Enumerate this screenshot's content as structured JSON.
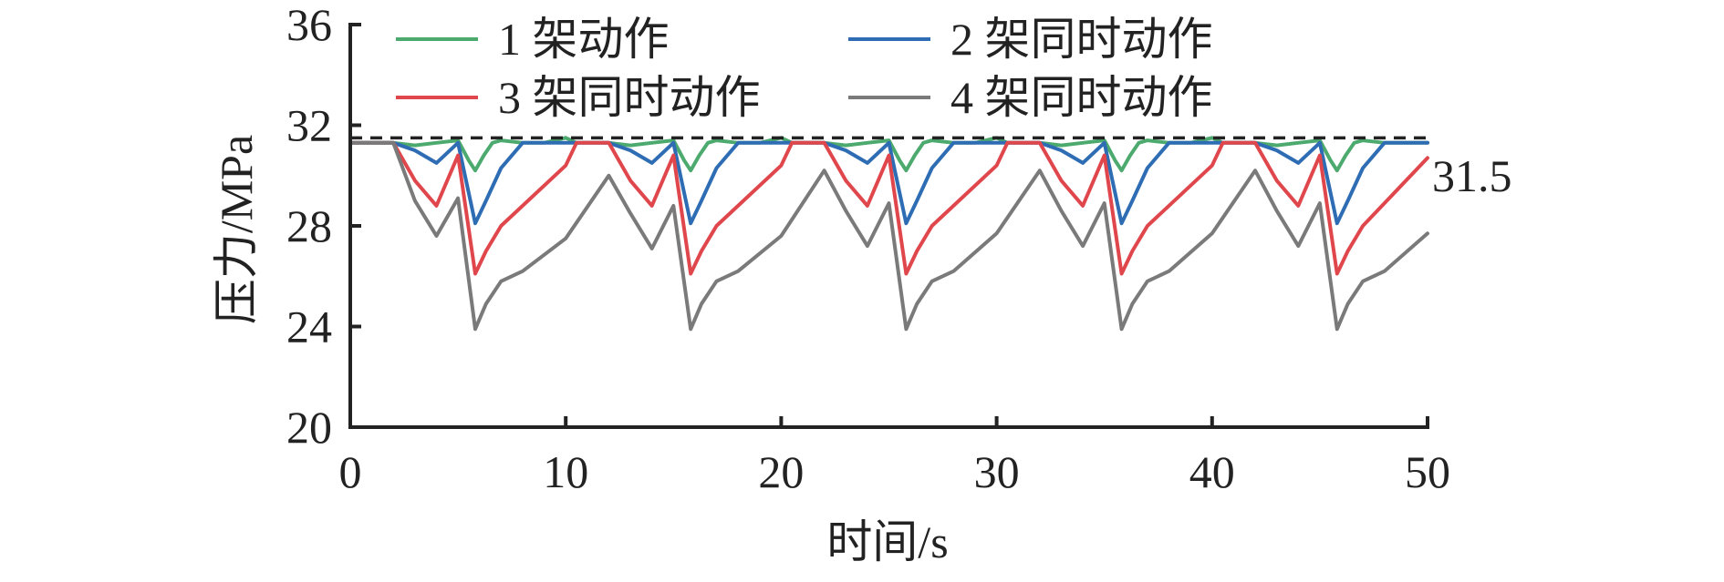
{
  "chart_data": {
    "type": "line",
    "title": "",
    "xlabel": "时间/s",
    "ylabel": "压力/MPa",
    "xlim": [
      0,
      50
    ],
    "ylim": [
      20,
      36
    ],
    "xticks": [
      0,
      10,
      20,
      30,
      40,
      50
    ],
    "yticks": [
      20,
      24,
      28,
      32,
      36
    ],
    "grid": false,
    "legend_position": "top",
    "reference_line": {
      "y": 31.5,
      "label": "31.5",
      "style": "dashed",
      "color": "#222222"
    },
    "series": [
      {
        "name": "1 架动作",
        "color": "#4daa6e",
        "x": [
          0,
          2,
          3,
          4,
          5,
          5.5,
          5.8,
          6.2,
          6.6,
          7,
          8,
          9,
          9.5,
          10,
          10.5,
          12,
          13,
          14,
          15,
          15.5,
          15.8,
          16.2,
          16.6,
          17,
          18,
          19,
          19.5,
          20,
          20.5,
          22,
          23,
          24,
          25,
          25.5,
          25.8,
          26.2,
          26.6,
          27,
          28,
          29,
          29.5,
          30,
          30.5,
          32,
          33,
          34,
          35,
          35.5,
          35.8,
          36.2,
          36.6,
          37,
          38,
          39,
          39.5,
          40,
          40.5,
          42,
          43,
          44,
          45,
          45.5,
          45.8,
          46.2,
          46.6,
          47,
          48,
          50
        ],
        "y": [
          31.3,
          31.3,
          31.2,
          31.3,
          31.4,
          30.6,
          30.2,
          30.8,
          31.3,
          31.4,
          31.3,
          31.3,
          31.4,
          31.5,
          31.3,
          31.3,
          31.2,
          31.3,
          31.4,
          30.6,
          30.2,
          30.8,
          31.3,
          31.4,
          31.3,
          31.3,
          31.4,
          31.5,
          31.3,
          31.3,
          31.2,
          31.3,
          31.4,
          30.6,
          30.2,
          30.8,
          31.3,
          31.4,
          31.3,
          31.3,
          31.4,
          31.5,
          31.3,
          31.3,
          31.2,
          31.3,
          31.4,
          30.6,
          30.2,
          30.8,
          31.3,
          31.4,
          31.3,
          31.3,
          31.4,
          31.5,
          31.3,
          31.3,
          31.2,
          31.3,
          31.4,
          30.6,
          30.2,
          30.8,
          31.3,
          31.4,
          31.3,
          31.3
        ]
      },
      {
        "name": "2 架同时动作",
        "color": "#2e6db4",
        "x": [
          0,
          2,
          3,
          4,
          5,
          5.5,
          5.8,
          6.3,
          7,
          8,
          10,
          12,
          13,
          14,
          15,
          15.5,
          15.8,
          16.3,
          17,
          18,
          20,
          22,
          23,
          24,
          25,
          25.5,
          25.8,
          26.3,
          27,
          28,
          30,
          32,
          33,
          34,
          35,
          35.5,
          35.8,
          36.3,
          37,
          38,
          40,
          42,
          43,
          44,
          45,
          45.5,
          45.8,
          46.3,
          47,
          48,
          50
        ],
        "y": [
          31.3,
          31.3,
          31.0,
          30.5,
          31.3,
          29.3,
          28.1,
          29.0,
          30.3,
          31.3,
          31.3,
          31.3,
          31.0,
          30.5,
          31.3,
          29.3,
          28.1,
          29.0,
          30.3,
          31.3,
          31.3,
          31.3,
          31.0,
          30.5,
          31.3,
          29.3,
          28.1,
          29.0,
          30.3,
          31.3,
          31.3,
          31.3,
          31.0,
          30.5,
          31.3,
          29.3,
          28.1,
          29.0,
          30.3,
          31.3,
          31.3,
          31.3,
          31.0,
          30.5,
          31.3,
          29.3,
          28.1,
          29.0,
          30.3,
          31.3,
          31.3
        ]
      },
      {
        "name": "3 架同时动作",
        "color": "#e0474c",
        "x": [
          0,
          2,
          3,
          4,
          5,
          5.8,
          6.3,
          7,
          10,
          10.5,
          12,
          13,
          14,
          15,
          15.8,
          16.3,
          17,
          20,
          20.5,
          22,
          23,
          24,
          25,
          25.8,
          26.3,
          27,
          30,
          30.5,
          32,
          33,
          34,
          35,
          35.8,
          36.3,
          37,
          40,
          40.5,
          42,
          43,
          44,
          45,
          45.8,
          46.3,
          47,
          50
        ],
        "y": [
          31.3,
          31.3,
          29.8,
          28.8,
          30.8,
          26.1,
          27.0,
          28.0,
          30.4,
          31.3,
          31.3,
          29.8,
          28.8,
          30.8,
          26.1,
          27.0,
          28.0,
          30.4,
          31.3,
          31.3,
          29.8,
          28.8,
          30.8,
          26.1,
          27.0,
          28.0,
          30.4,
          31.3,
          31.3,
          29.8,
          28.8,
          30.8,
          26.1,
          27.0,
          28.0,
          30.4,
          31.3,
          31.3,
          29.8,
          28.8,
          30.8,
          26.1,
          27.0,
          28.0,
          30.7
        ]
      },
      {
        "name": "4 架同时动作",
        "color": "#7a7a7a",
        "x": [
          0,
          2,
          3,
          4,
          5,
          5.8,
          6.3,
          7,
          8,
          10,
          12,
          13,
          14,
          15,
          15.8,
          16.3,
          17,
          18,
          20,
          22,
          23,
          24,
          25,
          25.8,
          26.3,
          27,
          28,
          30,
          32,
          33,
          34,
          35,
          35.8,
          36.3,
          37,
          38,
          40,
          42,
          43,
          44,
          45,
          45.8,
          46.3,
          47,
          48,
          50
        ],
        "y": [
          31.3,
          31.3,
          29.0,
          27.6,
          29.1,
          23.9,
          24.9,
          25.8,
          26.2,
          27.5,
          30.0,
          28.5,
          27.1,
          28.8,
          23.9,
          24.9,
          25.8,
          26.2,
          27.6,
          30.2,
          28.6,
          27.2,
          28.9,
          23.9,
          24.9,
          25.8,
          26.2,
          27.7,
          30.2,
          28.6,
          27.2,
          28.9,
          23.9,
          24.9,
          25.8,
          26.2,
          27.7,
          30.2,
          28.6,
          27.2,
          28.9,
          23.9,
          24.9,
          25.8,
          26.2,
          27.7
        ]
      }
    ]
  }
}
